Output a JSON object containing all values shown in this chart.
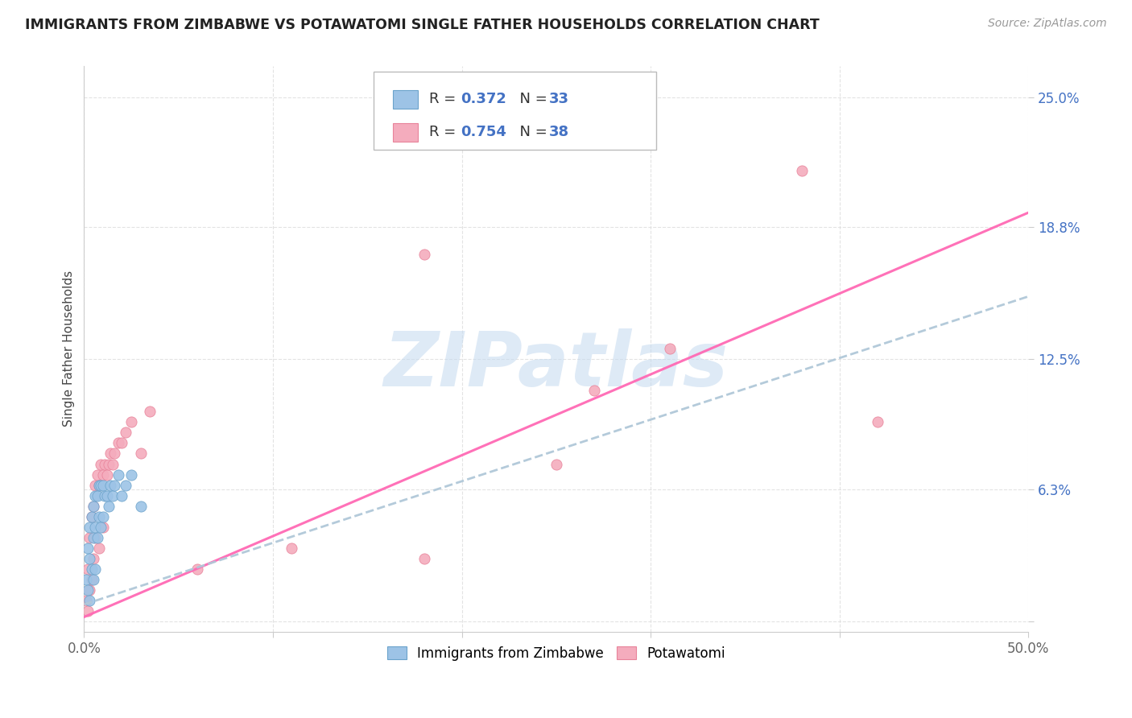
{
  "title": "IMMIGRANTS FROM ZIMBABWE VS POTAWATOMI SINGLE FATHER HOUSEHOLDS CORRELATION CHART",
  "source": "Source: ZipAtlas.com",
  "ylabel_label": "Single Father Households",
  "xlim": [
    0.0,
    0.5
  ],
  "ylim": [
    -0.005,
    0.265
  ],
  "y_tick_values": [
    0.0,
    0.063,
    0.125,
    0.188,
    0.25
  ],
  "y_tick_labels": [
    "",
    "6.3%",
    "12.5%",
    "18.8%",
    "25.0%"
  ],
  "x_tick_values": [
    0.0,
    0.1,
    0.2,
    0.3,
    0.4,
    0.5
  ],
  "x_tick_labels": [
    "0.0%",
    "",
    "",
    "",
    "",
    "50.0%"
  ],
  "r_blue": 0.372,
  "n_blue": 33,
  "r_pink": 0.754,
  "n_pink": 38,
  "color_blue": "#9DC3E6",
  "color_blue_edge": "#6BA3CB",
  "color_pink": "#F4ACBD",
  "color_pink_edge": "#E8839A",
  "color_pink_line": "#FF69B4",
  "color_blue_line": "#B0C8D8",
  "color_blue_solid": "#4472C4",
  "watermark_text": "ZIPatlas",
  "watermark_color": "#C8DCF0",
  "grid_color": "#DDDDDD",
  "title_color": "#222222",
  "source_color": "#999999",
  "tick_color_y": "#4472C4",
  "tick_color_x": "#666666",
  "ylabel_color": "#444444",
  "legend_r_color": "#333333",
  "legend_n_color": "#4472C4",
  "legend_val_color": "#4472C4",
  "blue_line_start_x": 0.0,
  "blue_line_start_y": 0.008,
  "blue_line_end_x": 0.5,
  "blue_line_end_y": 0.155,
  "pink_line_start_x": 0.0,
  "pink_line_start_y": 0.002,
  "pink_line_end_x": 0.5,
  "pink_line_end_y": 0.195,
  "scatter_blue_x": [
    0.001,
    0.002,
    0.002,
    0.003,
    0.003,
    0.003,
    0.004,
    0.004,
    0.005,
    0.005,
    0.005,
    0.006,
    0.006,
    0.006,
    0.007,
    0.007,
    0.008,
    0.008,
    0.009,
    0.009,
    0.01,
    0.01,
    0.011,
    0.012,
    0.013,
    0.014,
    0.015,
    0.016,
    0.018,
    0.02,
    0.022,
    0.025,
    0.03
  ],
  "scatter_blue_y": [
    0.02,
    0.035,
    0.015,
    0.045,
    0.03,
    0.01,
    0.05,
    0.025,
    0.055,
    0.04,
    0.02,
    0.06,
    0.045,
    0.025,
    0.06,
    0.04,
    0.065,
    0.05,
    0.065,
    0.045,
    0.065,
    0.05,
    0.06,
    0.06,
    0.055,
    0.065,
    0.06,
    0.065,
    0.07,
    0.06,
    0.065,
    0.07,
    0.055
  ],
  "scatter_pink_x": [
    0.001,
    0.002,
    0.002,
    0.003,
    0.003,
    0.004,
    0.004,
    0.005,
    0.005,
    0.006,
    0.006,
    0.007,
    0.008,
    0.008,
    0.009,
    0.01,
    0.01,
    0.011,
    0.012,
    0.013,
    0.014,
    0.015,
    0.016,
    0.018,
    0.02,
    0.022,
    0.025,
    0.03,
    0.035,
    0.06,
    0.11,
    0.18,
    0.25,
    0.31,
    0.38,
    0.42,
    0.18,
    0.27
  ],
  "scatter_pink_y": [
    0.01,
    0.025,
    0.005,
    0.04,
    0.015,
    0.05,
    0.02,
    0.055,
    0.03,
    0.065,
    0.04,
    0.07,
    0.065,
    0.035,
    0.075,
    0.07,
    0.045,
    0.075,
    0.07,
    0.075,
    0.08,
    0.075,
    0.08,
    0.085,
    0.085,
    0.09,
    0.095,
    0.08,
    0.1,
    0.025,
    0.035,
    0.03,
    0.075,
    0.13,
    0.215,
    0.095,
    0.175,
    0.11
  ]
}
